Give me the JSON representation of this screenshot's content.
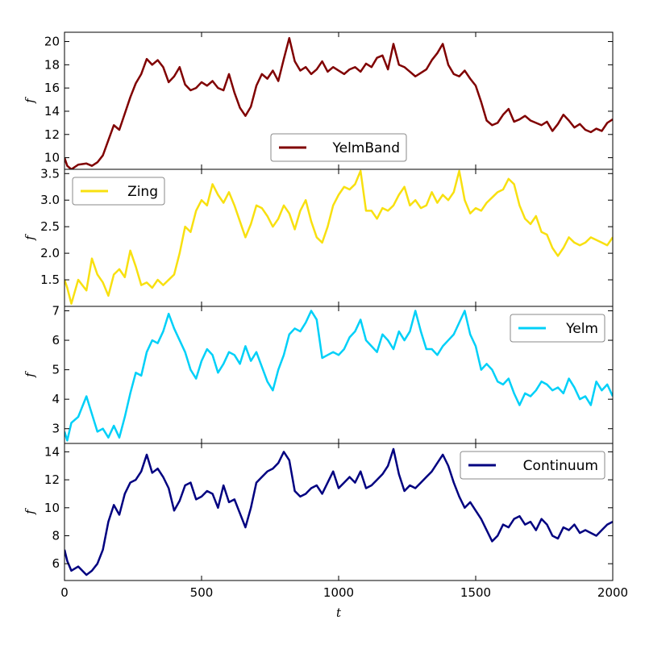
{
  "chart_data": {
    "type": "line",
    "layout": "4 vertically stacked panels sharing the x axis",
    "xlabel": "t",
    "xlim": [
      0,
      2000
    ],
    "xticks": [
      0,
      500,
      1000,
      1500,
      2000
    ],
    "panels": [
      {
        "ylabel": "f",
        "ylim": [
          9.0,
          20.8
        ],
        "yticks": [
          10,
          12,
          14,
          16,
          18,
          20
        ],
        "legend": "bottom-center",
        "series": [
          {
            "name": "YelmBand",
            "color": "#800000",
            "x": [
              0,
              10,
              25,
              50,
              80,
              100,
              120,
              140,
              160,
              180,
              200,
              220,
              240,
              260,
              280,
              300,
              320,
              340,
              360,
              380,
              400,
              420,
              440,
              460,
              480,
              500,
              520,
              540,
              560,
              580,
              600,
              620,
              640,
              660,
              680,
              700,
              720,
              740,
              760,
              780,
              800,
              820,
              840,
              860,
              880,
              900,
              920,
              940,
              960,
              980,
              1000,
              1020,
              1040,
              1060,
              1080,
              1100,
              1120,
              1140,
              1160,
              1180,
              1200,
              1220,
              1240,
              1260,
              1280,
              1300,
              1320,
              1340,
              1360,
              1380,
              1400,
              1420,
              1440,
              1460,
              1480,
              1500,
              1520,
              1540,
              1560,
              1580,
              1600,
              1620,
              1640,
              1660,
              1680,
              1700,
              1720,
              1740,
              1760,
              1780,
              1800,
              1820,
              1840,
              1860,
              1880,
              1900,
              1920,
              1940,
              1960,
              1980,
              2000
            ],
            "y": [
              10.0,
              9.3,
              9.0,
              9.4,
              9.5,
              9.3,
              9.6,
              10.2,
              11.5,
              12.8,
              12.4,
              13.8,
              15.2,
              16.4,
              17.2,
              18.5,
              18.0,
              18.4,
              17.8,
              16.5,
              17.0,
              17.8,
              16.3,
              15.8,
              16.0,
              16.5,
              16.2,
              16.6,
              16.0,
              15.8,
              17.2,
              15.6,
              14.3,
              13.6,
              14.4,
              16.2,
              17.2,
              16.8,
              17.5,
              16.6,
              18.5,
              20.3,
              18.3,
              17.5,
              17.8,
              17.2,
              17.6,
              18.3,
              17.4,
              17.8,
              17.5,
              17.2,
              17.6,
              17.8,
              17.4,
              18.1,
              17.8,
              18.6,
              18.8,
              17.6,
              19.8,
              18.0,
              17.8,
              17.4,
              17.0,
              17.3,
              17.6,
              18.4,
              19.0,
              19.8,
              18.0,
              17.2,
              17.0,
              17.5,
              16.8,
              16.2,
              14.8,
              13.2,
              12.8,
              13.0,
              13.7,
              14.2,
              13.1,
              13.3,
              13.6,
              13.2,
              13.0,
              12.8,
              13.1,
              12.3,
              12.9,
              13.7,
              13.2,
              12.6,
              12.9,
              12.4,
              12.2,
              12.5,
              12.3,
              13.0,
              13.3
            ]
          }
        ]
      },
      {
        "ylabel": "f",
        "ylim": [
          1.0,
          3.58
        ],
        "yticks": [
          1.5,
          2.0,
          2.5,
          3.0,
          3.5
        ],
        "legend": "top-left",
        "series": [
          {
            "name": "Zing",
            "color": "#f8e010",
            "x": [
              0,
              10,
              25,
              50,
              80,
              100,
              120,
              140,
              160,
              180,
              200,
              220,
              240,
              260,
              280,
              300,
              320,
              340,
              360,
              380,
              400,
              420,
              440,
              460,
              480,
              500,
              520,
              540,
              560,
              580,
              600,
              620,
              640,
              660,
              680,
              700,
              720,
              740,
              760,
              780,
              800,
              820,
              840,
              860,
              880,
              900,
              920,
              940,
              960,
              980,
              1000,
              1020,
              1040,
              1060,
              1080,
              1100,
              1120,
              1140,
              1160,
              1180,
              1200,
              1220,
              1240,
              1260,
              1280,
              1300,
              1320,
              1340,
              1360,
              1380,
              1400,
              1420,
              1440,
              1460,
              1480,
              1500,
              1520,
              1540,
              1560,
              1580,
              1600,
              1620,
              1640,
              1660,
              1680,
              1700,
              1720,
              1740,
              1760,
              1780,
              1800,
              1820,
              1840,
              1860,
              1880,
              1900,
              1920,
              1940,
              1960,
              1980,
              2000
            ],
            "y": [
              1.5,
              1.35,
              1.05,
              1.5,
              1.3,
              1.9,
              1.6,
              1.45,
              1.2,
              1.6,
              1.7,
              1.55,
              2.05,
              1.75,
              1.4,
              1.45,
              1.35,
              1.5,
              1.4,
              1.5,
              1.6,
              2.0,
              2.5,
              2.4,
              2.8,
              3.0,
              2.9,
              3.3,
              3.1,
              2.95,
              3.15,
              2.9,
              2.6,
              2.3,
              2.55,
              2.9,
              2.85,
              2.7,
              2.5,
              2.65,
              2.9,
              2.75,
              2.45,
              2.8,
              3.0,
              2.6,
              2.3,
              2.2,
              2.5,
              2.9,
              3.1,
              3.25,
              3.2,
              3.3,
              3.55,
              2.8,
              2.8,
              2.65,
              2.85,
              2.8,
              2.9,
              3.1,
              3.25,
              2.9,
              3.0,
              2.85,
              2.9,
              3.15,
              2.95,
              3.1,
              3.0,
              3.15,
              3.55,
              3.0,
              2.75,
              2.85,
              2.8,
              2.95,
              3.05,
              3.15,
              3.2,
              3.4,
              3.3,
              2.9,
              2.65,
              2.55,
              2.7,
              2.4,
              2.35,
              2.1,
              1.95,
              2.1,
              2.3,
              2.2,
              2.15,
              2.2,
              2.3,
              2.25,
              2.2,
              2.15,
              2.3
            ]
          }
        ]
      },
      {
        "ylabel": "f",
        "ylim": [
          2.5,
          7.15
        ],
        "yticks": [
          3,
          4,
          5,
          6,
          7
        ],
        "legend": "top-right",
        "series": [
          {
            "name": "Yelm",
            "color": "#00d0f8",
            "x": [
              0,
              10,
              25,
              50,
              80,
              100,
              120,
              140,
              160,
              180,
              200,
              220,
              240,
              260,
              280,
              300,
              320,
              340,
              360,
              380,
              400,
              420,
              440,
              460,
              480,
              500,
              520,
              540,
              560,
              580,
              600,
              620,
              640,
              660,
              680,
              700,
              720,
              740,
              760,
              780,
              800,
              820,
              840,
              860,
              880,
              900,
              920,
              940,
              960,
              980,
              1000,
              1020,
              1040,
              1060,
              1080,
              1100,
              1120,
              1140,
              1160,
              1180,
              1200,
              1220,
              1240,
              1260,
              1280,
              1300,
              1320,
              1340,
              1360,
              1380,
              1400,
              1420,
              1440,
              1460,
              1480,
              1500,
              1520,
              1540,
              1560,
              1580,
              1600,
              1620,
              1640,
              1660,
              1680,
              1700,
              1720,
              1740,
              1760,
              1780,
              1800,
              1820,
              1840,
              1860,
              1880,
              1900,
              1920,
              1940,
              1960,
              1980,
              2000
            ],
            "y": [
              2.9,
              2.6,
              3.2,
              3.4,
              4.1,
              3.5,
              2.9,
              3.0,
              2.7,
              3.1,
              2.7,
              3.4,
              4.2,
              4.9,
              4.8,
              5.6,
              6.0,
              5.9,
              6.3,
              6.9,
              6.4,
              6.0,
              5.6,
              5.0,
              4.7,
              5.3,
              5.7,
              5.5,
              4.9,
              5.2,
              5.6,
              5.5,
              5.2,
              5.8,
              5.3,
              5.6,
              5.1,
              4.6,
              4.3,
              5.0,
              5.5,
              6.2,
              6.4,
              6.3,
              6.6,
              7.0,
              6.7,
              5.4,
              5.5,
              5.6,
              5.5,
              5.7,
              6.1,
              6.3,
              6.7,
              6.0,
              5.8,
              5.6,
              6.2,
              6.0,
              5.7,
              6.3,
              6.0,
              6.3,
              7.0,
              6.3,
              5.7,
              5.7,
              5.5,
              5.8,
              6.0,
              6.2,
              6.6,
              7.0,
              6.2,
              5.8,
              5.0,
              5.2,
              5.0,
              4.6,
              4.5,
              4.7,
              4.2,
              3.8,
              4.2,
              4.1,
              4.3,
              4.6,
              4.5,
              4.3,
              4.4,
              4.2,
              4.7,
              4.4,
              4.0,
              4.1,
              3.8,
              4.6,
              4.3,
              4.5,
              4.1
            ]
          }
        ]
      },
      {
        "ylabel": "f",
        "ylim": [
          4.8,
          14.6
        ],
        "yticks": [
          6,
          8,
          10,
          12,
          14
        ],
        "legend": "top-right",
        "series": [
          {
            "name": "Continuum",
            "color": "#000080",
            "x": [
              0,
              10,
              25,
              50,
              80,
              100,
              120,
              140,
              160,
              180,
              200,
              220,
              240,
              260,
              280,
              300,
              320,
              340,
              360,
              380,
              400,
              420,
              440,
              460,
              480,
              500,
              520,
              540,
              560,
              580,
              600,
              620,
              640,
              660,
              680,
              700,
              720,
              740,
              760,
              780,
              800,
              820,
              840,
              860,
              880,
              900,
              920,
              940,
              960,
              980,
              1000,
              1020,
              1040,
              1060,
              1080,
              1100,
              1120,
              1140,
              1160,
              1180,
              1200,
              1220,
              1240,
              1260,
              1280,
              1300,
              1320,
              1340,
              1360,
              1380,
              1400,
              1420,
              1440,
              1460,
              1480,
              1500,
              1520,
              1540,
              1560,
              1580,
              1600,
              1620,
              1640,
              1660,
              1680,
              1700,
              1720,
              1740,
              1760,
              1780,
              1800,
              1820,
              1840,
              1860,
              1880,
              1900,
              1920,
              1940,
              1960,
              1980,
              2000
            ],
            "y": [
              7.0,
              6.2,
              5.5,
              5.8,
              5.2,
              5.5,
              6.0,
              7.0,
              9.0,
              10.2,
              9.5,
              11.0,
              11.8,
              12.0,
              12.6,
              13.8,
              12.5,
              12.8,
              12.2,
              11.4,
              9.8,
              10.5,
              11.6,
              11.8,
              10.6,
              10.8,
              11.2,
              11.0,
              10.0,
              11.6,
              10.4,
              10.6,
              9.6,
              8.6,
              10.0,
              11.8,
              12.2,
              12.6,
              12.8,
              13.2,
              14.0,
              13.4,
              11.2,
              10.8,
              11.0,
              11.4,
              11.6,
              11.0,
              11.8,
              12.6,
              11.4,
              11.8,
              12.2,
              11.8,
              12.6,
              11.4,
              11.6,
              12.0,
              12.4,
              13.0,
              14.2,
              12.4,
              11.2,
              11.6,
              11.4,
              11.8,
              12.2,
              12.6,
              13.2,
              13.8,
              13.0,
              11.8,
              10.8,
              10.0,
              10.4,
              9.8,
              9.2,
              8.4,
              7.6,
              8.0,
              8.8,
              8.6,
              9.2,
              9.4,
              8.8,
              9.0,
              8.4,
              9.2,
              8.8,
              8.0,
              7.8,
              8.6,
              8.4,
              8.8,
              8.2,
              8.4,
              8.2,
              8.0,
              8.4,
              8.8,
              9.0
            ]
          }
        ]
      }
    ]
  }
}
